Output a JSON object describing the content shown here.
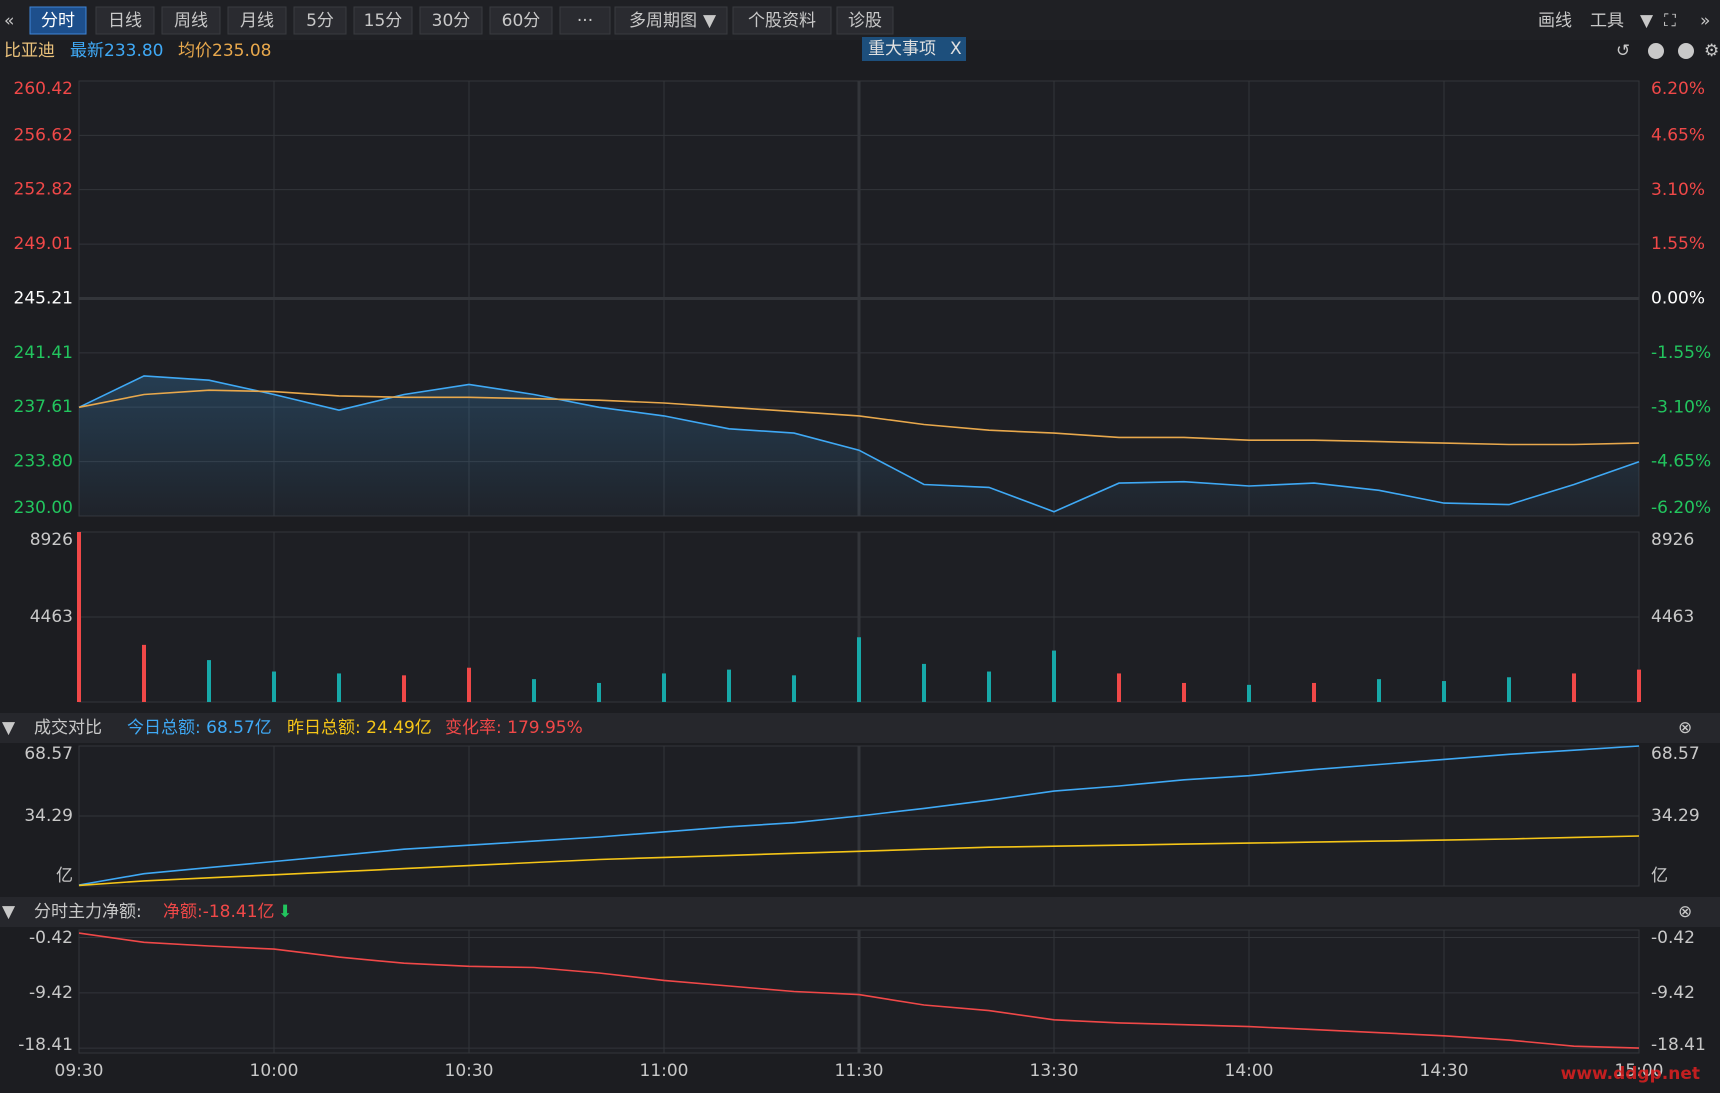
{
  "toolbar": {
    "buttons": [
      "分时",
      "日线",
      "周线",
      "月线",
      "5分",
      "15分",
      "30分",
      "60分",
      "···",
      "多周期图",
      "个股资料",
      "诊股"
    ],
    "tools": [
      "画线",
      "工具"
    ]
  },
  "stock": {
    "name": "比亚迪",
    "latest": "最新233.80",
    "average": "均价235.08",
    "event": "重大事项",
    "close": "X"
  },
  "chart_data": [
    {
      "type": "line",
      "categories": [
        "09:30",
        null,
        null,
        "10:00",
        null,
        null,
        "10:30",
        null,
        null,
        "11:00",
        null,
        null,
        "11:30",
        null,
        null,
        "13:30",
        null,
        null,
        "14:00",
        null,
        null,
        "14:30",
        null,
        null,
        "15:00"
      ],
      "series": [
        {
          "color": "#3fa9f5",
          "values": [
            237.6,
            239.8,
            239.5,
            238.5,
            237.4,
            238.5,
            239.2,
            238.5,
            237.6,
            237.0,
            236.1,
            235.8,
            234.6,
            232.2,
            232.0,
            230.3,
            232.3,
            232.4,
            232.1,
            232.3,
            231.8,
            230.9,
            230.8,
            232.2,
            233.8
          ]
        },
        {
          "color": "#e8a84c",
          "values": [
            237.6,
            238.5,
            238.8,
            238.7,
            238.4,
            238.3,
            238.3,
            238.2,
            238.1,
            237.9,
            237.6,
            237.3,
            237.0,
            236.4,
            236.0,
            235.8,
            235.5,
            235.5,
            235.3,
            235.3,
            235.2,
            235.1,
            235.0,
            235.0,
            235.1
          ]
        }
      ],
      "ylim": [
        230,
        260.42
      ],
      "yticks": [
        260.42,
        256.62,
        252.82,
        249.01,
        245.21,
        241.41,
        237.61,
        {
          "value": 233.8,
          "label": "233.80"
        },
        {
          "value": 230,
          "label": "230.00"
        }
      ],
      "y2lim": [
        -6.2,
        6.2
      ],
      "y2ticks": [
        {
          "value": 6.2,
          "label": "6.20%"
        },
        {
          "value": 4.65,
          "label": "4.65%"
        },
        {
          "value": 3.1,
          "label": "3.10%"
        },
        {
          "value": 1.55,
          "label": "1.55%"
        },
        {
          "value": 0,
          "label": "0.00%"
        },
        {
          "value": -1.55,
          "label": "-1.55%"
        },
        {
          "value": -3.1,
          "label": "-3.10%"
        },
        {
          "value": -4.65,
          "label": "-4.65%"
        },
        {
          "value": -6.2,
          "label": "-6.20%"
        }
      ],
      "grid": true
    },
    {
      "type": "bar",
      "up_color": "#f04848",
      "down_color": "#17a8a8",
      "values": [
        8926,
        3000,
        2200,
        1600,
        1500,
        1400,
        1800,
        1200,
        1000,
        1500,
        1700,
        1400,
        3400,
        2000,
        1600,
        2700,
        1500,
        1000,
        900,
        1000,
        1200,
        1100,
        1300,
        1500,
        1700
      ],
      "ylim": [
        0,
        8926
      ],
      "yticks": [
        4463,
        8926
      ],
      "grid": true
    },
    {
      "type": "line",
      "title": "成交对比",
      "annotation": "变化率: 179.95%",
      "unit": "亿",
      "series": [
        {
          "name": "今日总额: 68.57亿",
          "color": "#3fa9f5",
          "values": [
            0.5,
            6,
            9,
            12,
            15,
            18,
            20,
            22,
            24,
            26.5,
            29,
            31,
            34.3,
            38,
            42,
            46.5,
            49,
            52,
            54,
            57,
            59.5,
            62,
            64.5,
            66.5,
            68.57
          ]
        },
        {
          "name": "昨日总额: 24.49亿",
          "color": "#f5c518",
          "values": [
            0.3,
            2.5,
            4,
            5.5,
            7,
            8.5,
            10,
            11.5,
            13,
            14,
            15,
            16,
            17,
            18,
            19,
            19.5,
            20,
            20.5,
            21,
            21.5,
            22,
            22.5,
            23,
            23.8,
            24.49
          ]
        }
      ],
      "ylim": [
        0,
        68.57
      ],
      "yticks": [
        34.29,
        68.57
      ],
      "grid": true
    },
    {
      "type": "line",
      "title": "分时主力净额:",
      "series": [
        {
          "name": "净额:-18.41亿",
          "color": "#f04848",
          "values": [
            0.3,
            -1.2,
            -1.8,
            -2.3,
            -3.6,
            -4.6,
            -5.1,
            -5.3,
            -6.2,
            -7.4,
            -8.3,
            -9.2,
            -9.7,
            -11.4,
            -12.3,
            -13.8,
            -14.3,
            -14.6,
            -14.9,
            -15.4,
            -15.9,
            -16.4,
            -17.1,
            -18.1,
            -18.41
          ]
        }
      ],
      "ylim": [
        -19.2,
        0.8
      ],
      "yticks": [
        -0.42,
        -9.42,
        -18.41
      ],
      "grid": true
    }
  ],
  "watermark": "www.ddgp.net"
}
